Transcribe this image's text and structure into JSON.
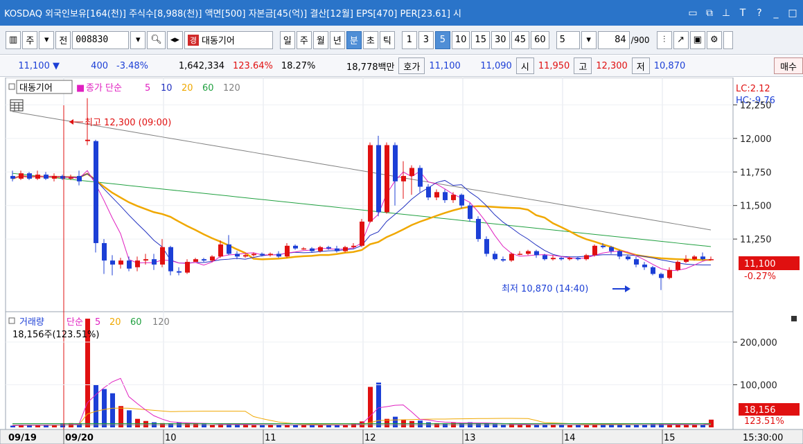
{
  "titlebar": {
    "text": "KOSDAQ 외국인보유[164(천)] 주식수[8,988(천)] 액면[500] 자본금[45(억)] 결산[12월] EPS[470] PER[23.61] 시",
    "icons": [
      "window-icon",
      "restore-icon",
      "pin-icon",
      "text-icon",
      "help-icon",
      "minimize-icon",
      "maximize-icon"
    ]
  },
  "toolbar": {
    "market": "주",
    "all": "전",
    "code": "008830",
    "name_badge": "경",
    "name": "대동기어",
    "periods": [
      "일",
      "주",
      "월",
      "년",
      "분",
      "초",
      "틱"
    ],
    "active_period": "분",
    "intervals": [
      "1",
      "3",
      "5",
      "10",
      "15",
      "30",
      "45",
      "60"
    ],
    "active_interval": "5",
    "interval_select": "5",
    "count": "84",
    "count_total": "/900"
  },
  "quote": {
    "price": "11,100",
    "arrow": "▼",
    "change": "400",
    "change_pct": "-3.48%",
    "volume": "1,642,334",
    "vol_ratio": "123.64%",
    "turnover": "18.27%",
    "amount": "18,778백만",
    "hoga_label": "호가",
    "ask": "11,100",
    "bid": "11,090",
    "open_label": "시",
    "open": "11,950",
    "high_label": "고",
    "high": "12,300",
    "low_label": "저",
    "low": "10,870",
    "sell_label": "매수"
  },
  "price_panel": {
    "stock_name": "대동기어",
    "legend_prefix": "종가 단순",
    "ma_labels": [
      "5",
      "10",
      "20",
      "60",
      "120"
    ],
    "lc_label": "LC:2.12",
    "hc_label": "HC:-9.76",
    "y_ticks": [
      "12,250",
      "12,000",
      "11,750",
      "11,500",
      "11,250"
    ],
    "current_price": "11,100",
    "current_pct": "-0.27%",
    "high_annotation": "최고 12,300 (09:00)",
    "low_annotation": "최저 10,870 (14:40)"
  },
  "volume_panel": {
    "title": "거래량",
    "legend_prefix": "단순",
    "ma_labels": [
      "5",
      "20",
      "60",
      "120"
    ],
    "info": "18,156주(123.51%)",
    "y_ticks": [
      "200,000",
      "100,000"
    ],
    "current_volume": "18,156",
    "current_pct": "123.51%"
  },
  "x_axis": {
    "labels": [
      "09/19",
      "09/20",
      "10",
      "11",
      "12",
      "13",
      "14",
      "15"
    ],
    "time": "15:30:00"
  },
  "colors": {
    "up": "#e01010",
    "down": "#1c3fd6",
    "ma5": "#e020c0",
    "ma10": "#2030c0",
    "ma20": "#f0a800",
    "ma60": "#20a040",
    "ma120": "#808080"
  },
  "chart_data": {
    "type": "candlestick",
    "interval_minutes": 5,
    "y_range": [
      10750,
      12350
    ],
    "high": 12300,
    "low": 10870,
    "last": 11100,
    "volume_y_range": [
      0,
      260000
    ],
    "last_volume": 18156
  }
}
